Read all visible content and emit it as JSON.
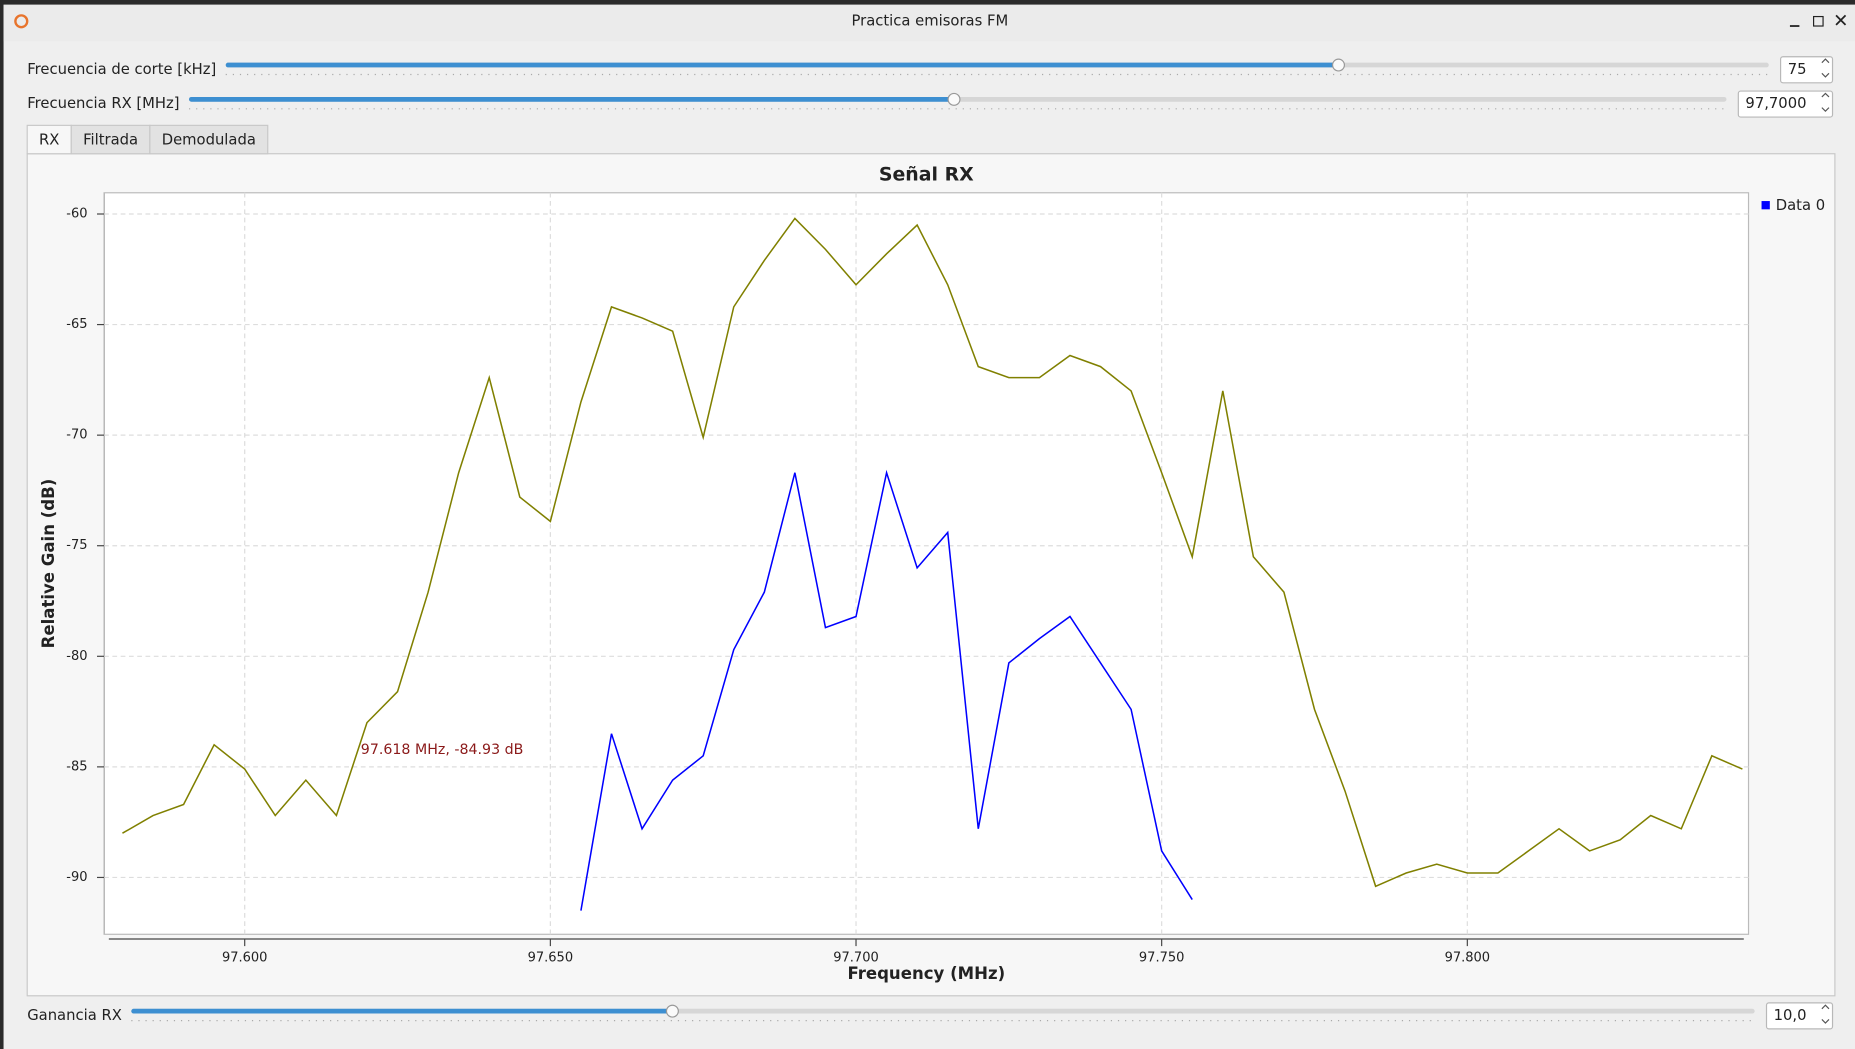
{
  "window": {
    "title": "Practica emisoras FM"
  },
  "controls": [
    {
      "label": "Frecuencia de corte [kHz]",
      "value": 75,
      "range": [
        0,
        104
      ]
    },
    {
      "label": "Frecuencia RX [MHz]",
      "value": 97.7,
      "value_label": "97,7000",
      "range": [
        87.5,
        108
      ]
    }
  ],
  "tabs": [
    "RX",
    "Filtrada",
    "Demodulada"
  ],
  "bottom_control": {
    "label": "Ganancia RX",
    "value": 10,
    "value_label": "10,0",
    "range": [
      0,
      30
    ]
  },
  "chart_data": {
    "type": "line",
    "title": "Señal RX",
    "x_label": "Frequency (MHz)",
    "y_label": "Relative Gain (dB)",
    "x": [
      97.58,
      97.585,
      97.59,
      97.595,
      97.6,
      97.605,
      97.61,
      97.615,
      97.62,
      97.625,
      97.63,
      97.635,
      97.64,
      97.645,
      97.65,
      97.655,
      97.66,
      97.665,
      97.67,
      97.675,
      97.68,
      97.685,
      97.69,
      97.695,
      97.7,
      97.705,
      97.71,
      97.715,
      97.72,
      97.725,
      97.73,
      97.735,
      97.74,
      97.745,
      97.75,
      97.755,
      97.76,
      97.765,
      97.77,
      97.775,
      97.78,
      97.785,
      97.79,
      97.795,
      97.8,
      97.805,
      97.81,
      97.815,
      97.82,
      97.825,
      97.83,
      97.835,
      97.84,
      97.845
    ],
    "series": [
      {
        "color": "#808000",
        "values": [
          -88,
          -87.2,
          -86.7,
          -84,
          -85.1,
          -87.2,
          -85.6,
          -87.2,
          -83,
          -81.6,
          -77.1,
          -71.7,
          -67.4,
          -72.8,
          -73.9,
          -68.5,
          -64.2,
          -64.7,
          -65.3,
          -70.1,
          -64.2,
          -62.1,
          -60.2,
          -61.6,
          -63.2,
          -61.8,
          -60.5,
          -63.2,
          -66.9,
          -67.4,
          -67.4,
          -66.4,
          -66.9,
          -68,
          -71.7,
          -75.5,
          -68,
          -75.5,
          -77.1,
          -82.4,
          -86.1,
          -90.4,
          -89.8,
          -89.4,
          -89.8,
          -89.8,
          -88.8,
          -87.8,
          -88.8,
          -88.3,
          -87.2,
          -87.8,
          -84.5,
          -85.1
        ]
      },
      {
        "name": "Data 0",
        "color": "#0000ff",
        "values": [
          null,
          null,
          null,
          null,
          null,
          null,
          null,
          null,
          null,
          null,
          null,
          null,
          null,
          null,
          null,
          -91.5,
          -83.5,
          -87.8,
          -85.6,
          -84.5,
          -79.7,
          -77.1,
          -71.7,
          -78.7,
          -78.2,
          -71.7,
          -76,
          -74.4,
          -87.8,
          -80.3,
          -79.2,
          -78.2,
          -80.3,
          -82.4,
          -88.8,
          -91,
          null,
          null,
          null,
          null,
          null,
          null,
          null,
          null,
          null,
          null,
          null,
          null,
          null,
          null,
          null,
          null,
          null,
          null
        ]
      }
    ],
    "xlim": [
      97.577,
      97.846
    ],
    "ylim": [
      -92.57,
      -59.04
    ],
    "xticks": [
      {
        "value": 97.6,
        "label": "97.600"
      },
      {
        "value": 97.65,
        "label": "97.650"
      },
      {
        "value": 97.7,
        "label": "97.700"
      },
      {
        "value": 97.75,
        "label": "97.750"
      },
      {
        "value": 97.8,
        "label": "97.800"
      }
    ],
    "yticks": [
      -90,
      -85,
      -80,
      -75,
      -70,
      -65,
      -60
    ],
    "grid": true,
    "annotation": "97.618 MHz, -84.93 dB"
  }
}
